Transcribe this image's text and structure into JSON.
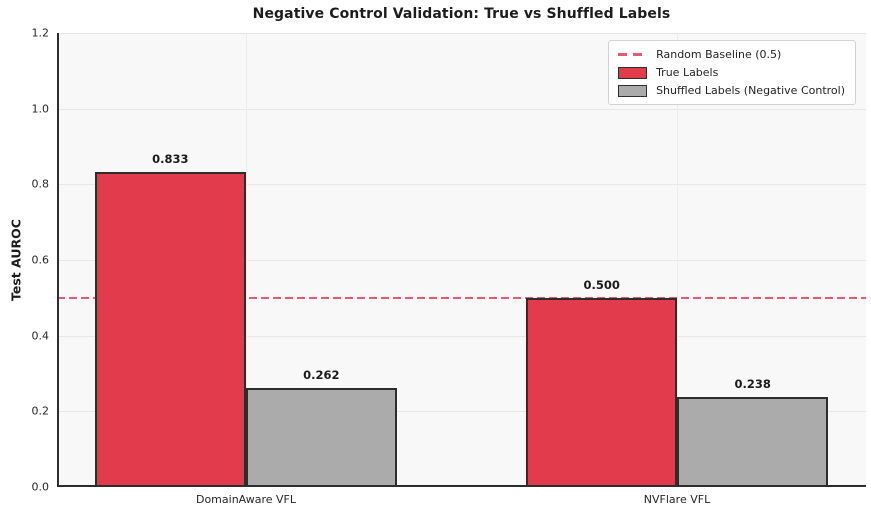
{
  "chart_data": {
    "type": "bar",
    "title": "Negative Control Validation: True vs Shuffled Labels",
    "ylabel": "Test AUROC",
    "categories": [
      "DomainAware VFL",
      "NVFlare VFL"
    ],
    "series": [
      {
        "name": "True Labels",
        "values": [
          0.833,
          0.5
        ],
        "value_labels": [
          "0.833",
          "0.500"
        ],
        "color": "#e23b4c"
      },
      {
        "name": "Shuffled Labels (Negative Control)",
        "values": [
          0.262,
          0.238
        ],
        "value_labels": [
          "0.262",
          "0.238"
        ],
        "color": "#ababab"
      }
    ],
    "bar_edge_color": "#2d2d2d",
    "baseline": {
      "value": 0.5,
      "label": "Random Baseline (0.5)",
      "color": "#e45a6f",
      "style": "dashed"
    },
    "ylim": [
      0.0,
      1.2
    ],
    "yticks": [
      0.0,
      0.2,
      0.4,
      0.6,
      0.8,
      1.0,
      1.2
    ],
    "ytick_labels": [
      "0.0",
      "0.2",
      "0.4",
      "0.6",
      "0.8",
      "1.0",
      "1.2"
    ],
    "grid": true,
    "legend_position": "upper right",
    "legend": [
      {
        "label": "Random Baseline (0.5)",
        "swatch": "dashed-line"
      },
      {
        "label": "True Labels",
        "swatch": "red-box"
      },
      {
        "label": "Shuffled Labels (Negative Control)",
        "swatch": "gray-box"
      }
    ],
    "plot_bg_color": "#f8f8f8"
  }
}
